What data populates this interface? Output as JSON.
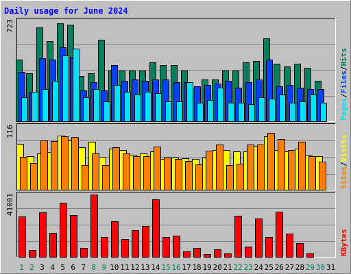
{
  "title": "Daily usage for June 2024",
  "colors": {
    "background": "#c0c0c0",
    "title": "#0000ff",
    "hits": "#00805c",
    "files": "#0040ff",
    "pages": "#00e0ff",
    "visits": "#ffff00",
    "sites": "#ff8000",
    "kbytes": "#ff0000",
    "weekday_label": "#000000",
    "weekend_label": "#00805c"
  },
  "panels": {
    "top": {
      "scale_label": "723",
      "legend": [
        "Pages",
        "/",
        "Files",
        "/",
        "Hits"
      ]
    },
    "middle": {
      "scale_label": "116",
      "legend": [
        "Sites",
        "/",
        "Visits"
      ]
    },
    "bottom": {
      "scale_label": "41001",
      "legend": [
        "KBytes"
      ]
    }
  },
  "chart_data": [
    {
      "type": "bar",
      "title": "Daily usage for June 2024",
      "panel": "hits-files-pages",
      "ylim": [
        0,
        723
      ],
      "categories": [
        "1",
        "2",
        "3",
        "4",
        "5",
        "6",
        "7",
        "8",
        "9",
        "10",
        "11",
        "12",
        "13",
        "14",
        "15",
        "16",
        "17",
        "18",
        "19",
        "20",
        "21",
        "22",
        "23",
        "24",
        "25",
        "26",
        "27",
        "28",
        "29",
        "30",
        "31"
      ],
      "weekend_days": [
        "1",
        "2",
        "8",
        "9",
        "15",
        "16",
        "22",
        "23",
        "29",
        "30"
      ],
      "series": [
        {
          "name": "Hits",
          "values": [
            440,
            340,
            670,
            570,
            700,
            690,
            320,
            340,
            580,
            360,
            360,
            360,
            360,
            420,
            400,
            400,
            360,
            240,
            300,
            300,
            360,
            360,
            420,
            430,
            590,
            410,
            390,
            410,
            380,
            290,
            0
          ]
        },
        {
          "name": "Files",
          "values": [
            350,
            210,
            450,
            440,
            530,
            460,
            220,
            280,
            220,
            400,
            290,
            300,
            290,
            300,
            300,
            280,
            280,
            250,
            260,
            270,
            290,
            240,
            280,
            300,
            440,
            250,
            260,
            240,
            230,
            230,
            0
          ]
        },
        {
          "name": "Pages",
          "values": [
            170,
            210,
            230,
            290,
            470,
            520,
            170,
            230,
            140,
            260,
            210,
            190,
            210,
            200,
            140,
            140,
            280,
            130,
            150,
            240,
            130,
            130,
            120,
            170,
            160,
            190,
            130,
            140,
            190,
            130,
            0
          ]
        }
      ]
    },
    {
      "type": "bar",
      "panel": "visits-sites",
      "ylim": [
        0,
        116
      ],
      "categories": [
        "1",
        "2",
        "3",
        "4",
        "5",
        "6",
        "7",
        "8",
        "9",
        "10",
        "11",
        "12",
        "13",
        "14",
        "15",
        "16",
        "17",
        "18",
        "19",
        "20",
        "21",
        "22",
        "23",
        "24",
        "25",
        "26",
        "27",
        "28",
        "29",
        "30",
        "31"
      ],
      "series": [
        {
          "name": "Visits",
          "values": [
            83,
            61,
            65,
            68,
            98,
            89,
            76,
            86,
            59,
            74,
            72,
            63,
            66,
            69,
            55,
            58,
            57,
            55,
            58,
            71,
            72,
            69,
            69,
            79,
            96,
            71,
            69,
            74,
            62,
            60,
            0
          ]
        },
        {
          "name": "Sites",
          "values": [
            59,
            48,
            89,
            87,
            96,
            95,
            45,
            66,
            45,
            76,
            66,
            61,
            60,
            78,
            58,
            56,
            52,
            46,
            70,
            81,
            45,
            47,
            82,
            82,
            102,
            91,
            72,
            86,
            61,
            50,
            0
          ]
        }
      ]
    },
    {
      "type": "bar",
      "panel": "kbytes",
      "ylim": [
        0,
        41001
      ],
      "categories": [
        "1",
        "2",
        "3",
        "4",
        "5",
        "6",
        "7",
        "8",
        "9",
        "10",
        "11",
        "12",
        "13",
        "14",
        "15",
        "16",
        "17",
        "18",
        "19",
        "20",
        "21",
        "22",
        "23",
        "24",
        "25",
        "26",
        "27",
        "28",
        "29",
        "30",
        "31"
      ],
      "series": [
        {
          "name": "KBytes",
          "values": [
            26200,
            4400,
            29000,
            15800,
            35000,
            27400,
            5700,
            40500,
            13100,
            23200,
            11800,
            17300,
            19900,
            37600,
            13100,
            14000,
            3600,
            5700,
            1700,
            5000,
            2300,
            26900,
            6800,
            25000,
            13100,
            29200,
            15200,
            9000,
            2400,
            0,
            0
          ]
        }
      ]
    }
  ]
}
